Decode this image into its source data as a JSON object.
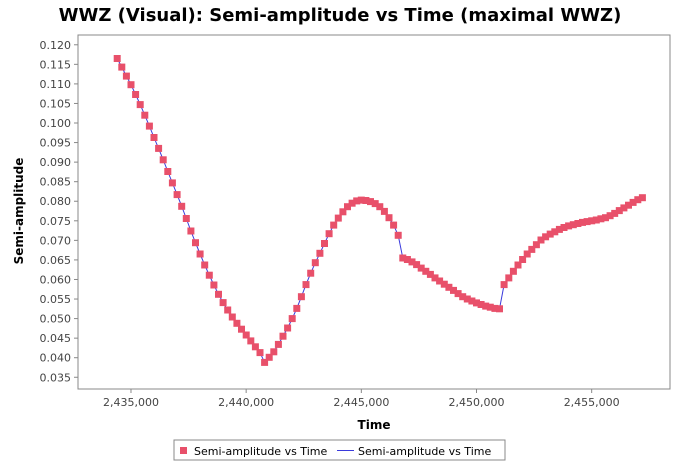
{
  "chart_data": {
    "type": "scatter",
    "title": "WWZ (Visual): Semi-amplitude vs Time (maximal WWZ)",
    "xlabel": "Time",
    "ylabel": "Semi-amplitude",
    "xlim": [
      2432700,
      2458400
    ],
    "ylim": [
      0.032,
      0.1225
    ],
    "x_ticks": [
      2435000,
      2440000,
      2445000,
      2450000,
      2455000
    ],
    "x_tick_labels": [
      "2,435,000",
      "2,440,000",
      "2,445,000",
      "2,450,000",
      "2,455,000"
    ],
    "y_ticks": [
      0.035,
      0.04,
      0.045,
      0.05,
      0.055,
      0.06,
      0.065,
      0.07,
      0.075,
      0.08,
      0.085,
      0.09,
      0.095,
      0.1,
      0.105,
      0.11,
      0.115,
      0.12
    ],
    "y_tick_labels": [
      "0.035",
      "0.040",
      "0.045",
      "0.050",
      "0.055",
      "0.060",
      "0.065",
      "0.070",
      "0.075",
      "0.080",
      "0.085",
      "0.090",
      "0.095",
      "0.100",
      "0.105",
      "0.110",
      "0.115",
      "0.120"
    ],
    "grid": false,
    "legend_position": "bottom",
    "series": [
      {
        "name": "Semi-amplitude vs Time",
        "style": "markers",
        "color": "#e8506a",
        "x": [
          2434400,
          2434600,
          2434800,
          2435000,
          2435200,
          2435400,
          2435600,
          2435800,
          2436000,
          2436200,
          2436400,
          2436600,
          2436800,
          2437000,
          2437200,
          2437400,
          2437600,
          2437800,
          2438000,
          2438200,
          2438400,
          2438600,
          2438800,
          2439000,
          2439200,
          2439400,
          2439600,
          2439800,
          2440000,
          2440200,
          2440400,
          2440600,
          2440800,
          2441000,
          2441200,
          2441400,
          2441600,
          2441800,
          2442000,
          2442200,
          2442400,
          2442600,
          2442800,
          2443000,
          2443200,
          2443400,
          2443600,
          2443800,
          2444000,
          2444200,
          2444400,
          2444600,
          2444800,
          2445000,
          2445200,
          2445400,
          2445600,
          2445800,
          2446000,
          2446200,
          2446400,
          2446600,
          2446800,
          2447000,
          2447200,
          2447400,
          2447600,
          2447800,
          2448000,
          2448200,
          2448400,
          2448600,
          2448800,
          2449000,
          2449200,
          2449400,
          2449600,
          2449800,
          2450000,
          2450200,
          2450400,
          2450600,
          2450800,
          2451000,
          2451200,
          2451400,
          2451600,
          2451800,
          2452000,
          2452200,
          2452400,
          2452600,
          2452800,
          2453000,
          2453200,
          2453400,
          2453600,
          2453800,
          2454000,
          2454200,
          2454400,
          2454600,
          2454800,
          2455000,
          2455200,
          2455400,
          2455600,
          2455800,
          2456000,
          2456200,
          2456400,
          2456600,
          2456800,
          2457000,
          2457200
        ],
        "y": [
          0.1165,
          0.1143,
          0.112,
          0.1098,
          0.1073,
          0.1047,
          0.102,
          0.0992,
          0.0963,
          0.0935,
          0.0906,
          0.0876,
          0.0847,
          0.0817,
          0.0787,
          0.0756,
          0.0724,
          0.0694,
          0.0665,
          0.0637,
          0.0611,
          0.0586,
          0.0562,
          0.0541,
          0.0522,
          0.0504,
          0.0488,
          0.0473,
          0.0458,
          0.0443,
          0.0428,
          0.0413,
          0.0388,
          0.0401,
          0.0415,
          0.0434,
          0.0455,
          0.0476,
          0.05,
          0.0526,
          0.0556,
          0.0587,
          0.0616,
          0.0643,
          0.0667,
          0.0692,
          0.0717,
          0.0739,
          0.0757,
          0.0773,
          0.0786,
          0.0795,
          0.0801,
          0.0803,
          0.0802,
          0.0799,
          0.0794,
          0.0786,
          0.0774,
          0.0758,
          0.0739,
          0.0713,
          0.0655,
          0.0651,
          0.0645,
          0.0638,
          0.0629,
          0.0621,
          0.0613,
          0.0604,
          0.0596,
          0.0588,
          0.058,
          0.0572,
          0.0564,
          0.0556,
          0.055,
          0.0545,
          0.054,
          0.0536,
          0.0532,
          0.0529,
          0.0526,
          0.0525,
          0.0587,
          0.0604,
          0.0621,
          0.0637,
          0.0651,
          0.0665,
          0.0677,
          0.0689,
          0.0701,
          0.0709,
          0.0716,
          0.0722,
          0.0728,
          0.0733,
          0.0737,
          0.074,
          0.0743,
          0.0746,
          0.0748,
          0.075,
          0.0752,
          0.0755,
          0.0758,
          0.0763,
          0.0769,
          0.0776,
          0.0783,
          0.079,
          0.0797,
          0.0804,
          0.0809
        ]
      },
      {
        "name": "Semi-amplitude vs Time",
        "style": "line",
        "color": "#3a3adc"
      }
    ]
  }
}
